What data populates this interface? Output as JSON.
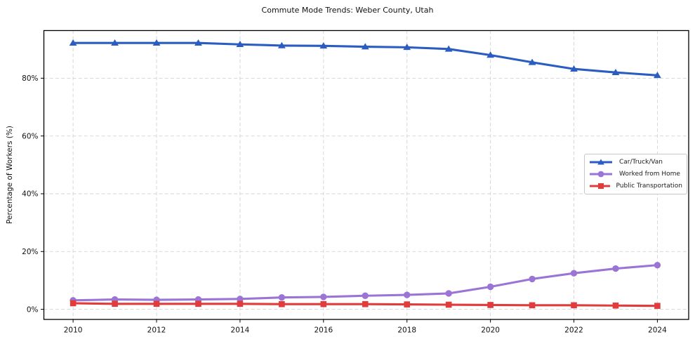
{
  "title": "Commute Mode Trends: Weber County, Utah",
  "chart_data": {
    "type": "line",
    "title": "Commute Mode Trends: Weber County, Utah",
    "xlabel": "",
    "ylabel": "Percentage of Workers (%)",
    "x": [
      2010,
      2011,
      2012,
      2013,
      2014,
      2015,
      2016,
      2017,
      2018,
      2019,
      2020,
      2021,
      2022,
      2023,
      2024
    ],
    "series": [
      {
        "name": "Car/Truck/Van",
        "marker": "triangle",
        "color": "#2a5cc2",
        "values": [
          92.2,
          92.2,
          92.2,
          92.2,
          91.7,
          91.3,
          91.2,
          90.9,
          90.7,
          90.1,
          88.0,
          85.5,
          83.2,
          82.0,
          81.0
        ]
      },
      {
        "name": "Worked from Home",
        "marker": "circle",
        "color": "#9b75d6",
        "values": [
          3.1,
          3.4,
          3.3,
          3.4,
          3.6,
          4.1,
          4.3,
          4.7,
          5.0,
          5.5,
          7.8,
          10.5,
          12.5,
          14.1,
          15.3
        ]
      },
      {
        "name": "Public Transportation",
        "marker": "square",
        "color": "#e13b3b",
        "values": [
          2.1,
          1.9,
          1.9,
          1.9,
          1.9,
          1.8,
          1.8,
          1.8,
          1.7,
          1.6,
          1.5,
          1.4,
          1.4,
          1.3,
          1.2
        ]
      }
    ],
    "xticks": [
      2010,
      2012,
      2014,
      2016,
      2018,
      2020,
      2022,
      2024
    ],
    "yticks": [
      0,
      20,
      40,
      60,
      80
    ],
    "ytick_labels": [
      "0%",
      "20%",
      "40%",
      "60%",
      "80%"
    ],
    "xlim": [
      2009.3,
      2024.75
    ],
    "ylim": [
      -3.5,
      96.5
    ],
    "grid": true,
    "grid_color": "#d3d3d3",
    "axis_color": "#000000",
    "tick_label_color": "#111111",
    "legend_position": "center-right"
  }
}
